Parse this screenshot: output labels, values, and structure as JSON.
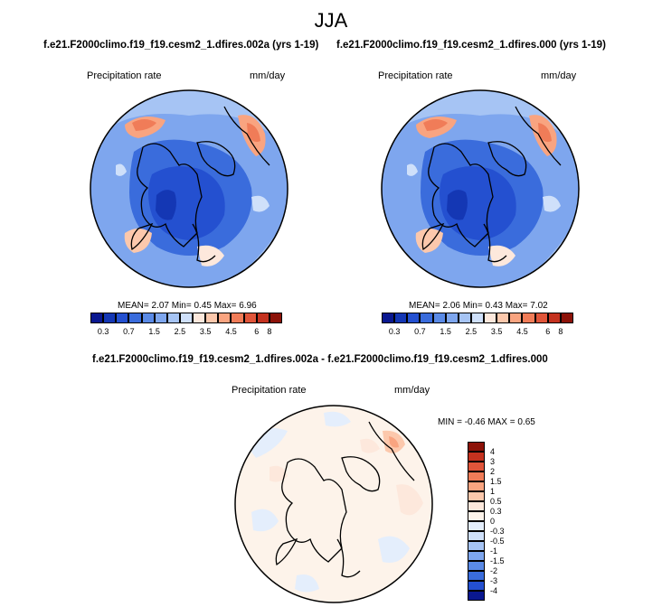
{
  "season": "JJA",
  "case1": "f.e21.F2000climo.f19_f19.cesm2_1.dfires.002a (yrs 1-19)",
  "case2": "f.e21.F2000climo.f19_f19.cesm2_1.dfires.000 (yrs 1-19)",
  "diff_title": "f.e21.F2000climo.f19_f19.cesm2_1.dfires.002a - f.e21.F2000climo.f19_f19.cesm2_1.dfires.000",
  "variable": "Precipitation rate",
  "units": "mm/day",
  "panel1_stats": "MEAN=  2.07  Min=  0.45  Max=  6.96",
  "panel2_stats": "MEAN=  2.06  Min=  0.43  Max=  7.02",
  "diff_stats": "MIN =  -0.46 MAX =   0.65",
  "abs_colorbar": {
    "labels": [
      "0.3",
      "0.7",
      "1.5",
      "2.5",
      "3.5",
      "4.5",
      "6",
      "8"
    ],
    "colors": [
      "#0a1890",
      "#1437b4",
      "#2450d0",
      "#3a6cdc",
      "#5a8ae6",
      "#7ea6ee",
      "#a6c4f4",
      "#cfe0fa",
      "#fde8dc",
      "#fcc8ac",
      "#f9a480",
      "#f07c58",
      "#e0553a",
      "#c4321f",
      "#8c1208"
    ]
  },
  "diff_colorbar": {
    "labels": [
      "4",
      "3",
      "2",
      "1.5",
      "1",
      "0.5",
      "0.3",
      "0",
      "-0.3",
      "-0.5",
      "-1",
      "-1.5",
      "-2",
      "-3",
      "-4"
    ],
    "colors": [
      "#8c1208",
      "#c4321f",
      "#e0553a",
      "#f07c58",
      "#f9a480",
      "#fcc8ac",
      "#fde8dc",
      "#fdf3ea",
      "#e4eefc",
      "#cfe0fa",
      "#a6c4f4",
      "#7ea6ee",
      "#5a8ae6",
      "#3a6cdc",
      "#2450d0",
      "#0a1890"
    ]
  }
}
